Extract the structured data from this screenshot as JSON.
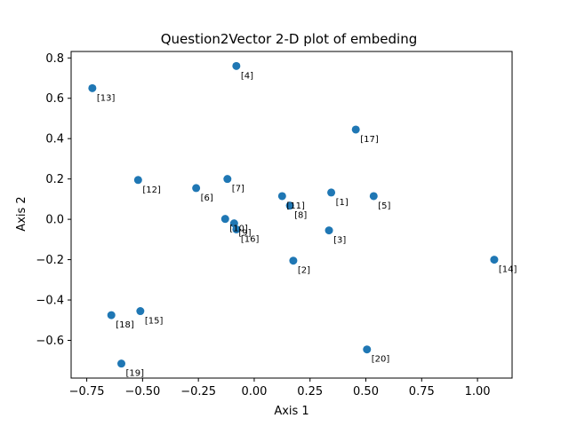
{
  "chart_data": {
    "type": "scatter",
    "title": "Question2Vector 2-D plot of embeding",
    "xlabel": "Axis 1",
    "ylabel": "Axis 2",
    "xlim": [
      -0.82,
      1.155
    ],
    "ylim": [
      -0.787,
      0.832
    ],
    "xticks": [
      -0.75,
      -0.5,
      -0.25,
      0.0,
      0.25,
      0.5,
      0.75,
      1.0
    ],
    "xtick_labels": [
      "−0.75",
      "−0.50",
      "−0.25",
      "0.00",
      "0.25",
      "0.50",
      "0.75",
      "1.00"
    ],
    "yticks": [
      -0.6,
      -0.4,
      -0.2,
      0.0,
      0.2,
      0.4,
      0.6,
      0.8
    ],
    "ytick_labels": [
      "−0.6",
      "−0.4",
      "−0.2",
      "0.0",
      "0.2",
      "0.4",
      "0.6",
      "0.8"
    ],
    "grid": false,
    "point_color": "#1f77b4",
    "points": [
      {
        "label": "[1]",
        "x": 0.345,
        "y": 0.133
      },
      {
        "label": "[2]",
        "x": 0.175,
        "y": -0.205
      },
      {
        "label": "[3]",
        "x": 0.335,
        "y": -0.055
      },
      {
        "label": "[4]",
        "x": -0.08,
        "y": 0.76
      },
      {
        "label": "[5]",
        "x": 0.535,
        "y": 0.115
      },
      {
        "label": "[6]",
        "x": -0.26,
        "y": 0.155
      },
      {
        "label": "[7]",
        "x": -0.12,
        "y": 0.2
      },
      {
        "label": "[8]",
        "x": 0.16,
        "y": 0.068
      },
      {
        "label": "[9]",
        "x": -0.09,
        "y": -0.02
      },
      {
        "label": "[10]",
        "x": -0.13,
        "y": 0.002
      },
      {
        "label": "[11]",
        "x": 0.125,
        "y": 0.115
      },
      {
        "label": "[12]",
        "x": -0.52,
        "y": 0.195
      },
      {
        "label": "[13]",
        "x": -0.725,
        "y": 0.65
      },
      {
        "label": "[14]",
        "x": 1.075,
        "y": -0.2
      },
      {
        "label": "[15]",
        "x": -0.51,
        "y": -0.455
      },
      {
        "label": "[16]",
        "x": -0.08,
        "y": -0.05
      },
      {
        "label": "[17]",
        "x": 0.455,
        "y": 0.445
      },
      {
        "label": "[18]",
        "x": -0.64,
        "y": -0.475
      },
      {
        "label": "[19]",
        "x": -0.595,
        "y": -0.715
      },
      {
        "label": "[20]",
        "x": 0.505,
        "y": -0.645
      }
    ]
  }
}
